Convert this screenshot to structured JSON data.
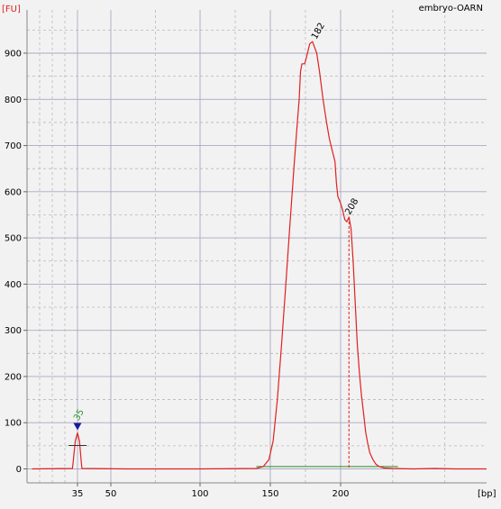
{
  "chart_data": {
    "type": "line",
    "sample_title": "embryo-OARN",
    "ylabel": "[FU]",
    "xlabel": "[bp]",
    "ylim": [
      -20,
      990
    ],
    "y_ticks": [
      0,
      100,
      200,
      300,
      400,
      500,
      600,
      700,
      800,
      900
    ],
    "x_ticks": [
      {
        "pos": 35,
        "label": "35"
      },
      {
        "pos": 50,
        "label": "50"
      },
      {
        "pos": 100,
        "label": "100"
      },
      {
        "pos": 150,
        "label": "150"
      },
      {
        "pos": 200,
        "label": "200"
      }
    ],
    "series": [
      {
        "name": "",
        "color": "#e02020",
        "points": [
          [
            17,
            0
          ],
          [
            33,
            1
          ],
          [
            33.3,
            15
          ],
          [
            34.1,
            60
          ],
          [
            35,
            78
          ],
          [
            35.9,
            60
          ],
          [
            36.7,
            15
          ],
          [
            37,
            1
          ],
          [
            60,
            0
          ],
          [
            100,
            0
          ],
          [
            140,
            1
          ],
          [
            145,
            5
          ],
          [
            149,
            20
          ],
          [
            152,
            60
          ],
          [
            155,
            150
          ],
          [
            158,
            270
          ],
          [
            161,
            400
          ],
          [
            164,
            530
          ],
          [
            167,
            660
          ],
          [
            169,
            740
          ],
          [
            170.5,
            800
          ],
          [
            171.5,
            860
          ],
          [
            172.5,
            877
          ],
          [
            174.5,
            877
          ],
          [
            176,
            895
          ],
          [
            178,
            920
          ],
          [
            180,
            925
          ],
          [
            183,
            900
          ],
          [
            185,
            860
          ],
          [
            187.5,
            800
          ],
          [
            190,
            750
          ],
          [
            192,
            715
          ],
          [
            194,
            690
          ],
          [
            196,
            665
          ],
          [
            197,
            620
          ],
          [
            198,
            590
          ],
          [
            200,
            575
          ],
          [
            202,
            560
          ],
          [
            204,
            540
          ],
          [
            206,
            535
          ],
          [
            208,
            545
          ],
          [
            210,
            520
          ],
          [
            212,
            450
          ],
          [
            214,
            360
          ],
          [
            216,
            270
          ],
          [
            218,
            210
          ],
          [
            220,
            160
          ],
          [
            222,
            120
          ],
          [
            224,
            80
          ],
          [
            226,
            55
          ],
          [
            228,
            35
          ],
          [
            231,
            20
          ],
          [
            234,
            10
          ],
          [
            237,
            5
          ],
          [
            242,
            2
          ],
          [
            250,
            1
          ],
          [
            270,
            0
          ],
          [
            290,
            1
          ],
          [
            310,
            0
          ],
          [
            340,
            0
          ]
        ]
      }
    ],
    "peaks": [
      {
        "label": "182",
        "size": 182,
        "fu": 925,
        "marker": false
      },
      {
        "label": "208",
        "size": 208,
        "fu": 545,
        "marker": true
      },
      {
        "label": "35",
        "size": 35,
        "fu": 78,
        "marker": "triangle",
        "color": "#2a9a2a"
      }
    ],
    "baseline": {
      "from": 140,
      "to": 255,
      "fu": 5,
      "color": "#2a8a2a"
    },
    "grid": true
  }
}
